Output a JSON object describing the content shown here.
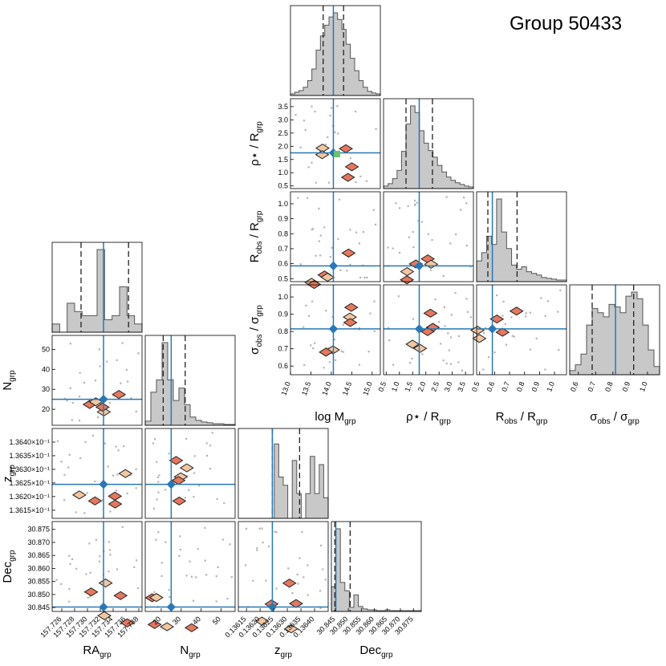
{
  "chart_data": {
    "type": "corner",
    "title": "Group 50433",
    "colors": {
      "truth": "#2878b5",
      "hist_fill": "#c8c8c8",
      "hist_edge": "#555555",
      "scatter": "#b4b4b4",
      "contour_line": "#222222",
      "contour_fill_1": "#f2c6a0",
      "contour_fill_2": "#e4785e",
      "marker_green": "#6cc26c"
    },
    "group_right": {
      "params": [
        {
          "key": "logM",
          "label_main": "log M",
          "label_sub": "grp",
          "range": [
            13.0,
            15.2
          ],
          "ticks": [
            "13.0",
            "13.5",
            "14.0",
            "14.5",
            "15.0"
          ],
          "tick_values": [
            13.0,
            13.5,
            14.0,
            14.5,
            15.0
          ],
          "truth": 14.05,
          "quantiles": [
            13.8,
            14.3
          ],
          "hist": [
            0.02,
            0.04,
            0.06,
            0.1,
            0.18,
            0.32,
            0.55,
            0.72,
            0.85,
            0.95,
            1.0,
            0.92,
            0.8,
            0.62,
            0.45,
            0.3,
            0.18,
            0.1,
            0.05,
            0.03,
            0.02
          ]
        },
        {
          "key": "rho",
          "label_main": "ρ⋆ / R",
          "label_sub": "grp",
          "range": [
            0.4,
            3.8
          ],
          "ticks": [
            "0.5",
            "1.0",
            "1.5",
            "2.0",
            "2.5",
            "3.0",
            "3.5"
          ],
          "tick_values": [
            0.5,
            1.0,
            1.5,
            2.0,
            2.5,
            3.0,
            3.5
          ],
          "truth": 1.75,
          "quantiles": [
            1.25,
            2.25
          ],
          "hist": [
            0.03,
            0.06,
            0.12,
            0.22,
            0.45,
            0.78,
            1.0,
            0.92,
            0.7,
            0.55,
            0.46,
            0.38,
            0.28,
            0.2,
            0.14,
            0.1,
            0.07,
            0.05,
            0.03,
            0.02
          ]
        },
        {
          "key": "robs",
          "label_main": "R",
          "label_sub": "obs",
          "label_tail": " / R",
          "label_sub2": "grp",
          "range": [
            0.48,
            1.08
          ],
          "ticks": [
            "0.5",
            "0.6",
            "0.7",
            "0.8",
            "0.9",
            "1.0"
          ],
          "tick_values": [
            0.5,
            0.6,
            0.7,
            0.8,
            0.9,
            1.0
          ],
          "truth": 0.585,
          "quantiles": [
            0.555,
            0.75
          ],
          "hist": [
            0.25,
            0.35,
            0.55,
            0.45,
            1.0,
            0.6,
            0.4,
            0.2,
            0.15,
            0.18,
            0.12,
            0.1,
            0.08,
            0.05,
            0.04,
            0.03,
            0.02,
            0.02
          ]
        },
        {
          "key": "sigma",
          "label_main": "σ",
          "label_sub": "obs",
          "label_tail": " / σ",
          "label_sub2": "grp",
          "range": [
            0.55,
            1.07
          ],
          "ticks": [
            "0.6",
            "0.7",
            "0.8",
            "0.9",
            "1.0"
          ],
          "tick_values": [
            0.6,
            0.7,
            0.8,
            0.9,
            1.0
          ],
          "truth": 0.815,
          "quantiles": [
            0.68,
            0.92
          ],
          "hist": [
            0.05,
            0.12,
            0.25,
            0.6,
            0.8,
            0.75,
            0.7,
            0.85,
            0.82,
            0.75,
            0.95,
            1.0,
            0.92,
            0.6,
            0.3,
            0.1
          ]
        }
      ]
    },
    "group_left": {
      "params": [
        {
          "key": "ra",
          "label_main": "RA",
          "label_sub": "grp",
          "range": [
            157.7245,
            157.7385
          ],
          "ticks": [
            "157.726",
            "157.728",
            "157.730",
            "157.732",
            "157.734",
            "157.736",
            "157.738"
          ],
          "tick_values": [
            157.726,
            157.728,
            157.73,
            157.732,
            157.734,
            157.736,
            157.738
          ],
          "truth": 157.7325,
          "quantiles": [
            157.729,
            157.7364
          ],
          "hist": [
            0.1,
            0.0,
            0.35,
            0.25,
            0.2,
            0.2,
            1.0,
            0.15,
            0.2,
            0.55,
            0.2,
            0.1
          ]
        },
        {
          "key": "ngrp",
          "label_main": "N",
          "label_sub": "grp",
          "range": [
            12,
            57
          ],
          "ticks": [
            "20",
            "30",
            "40",
            "50"
          ],
          "tick_values": [
            20,
            30,
            40,
            50
          ],
          "truth": 25,
          "quantiles": [
            21,
            32
          ],
          "hist": [
            0.05,
            0.4,
            0.55,
            1.0,
            0.55,
            0.3,
            0.45,
            0.25,
            0.1,
            0.06,
            0.04,
            0.03,
            0.02,
            0.02,
            0.01,
            0.01
          ]
        },
        {
          "key": "zgrp",
          "label_main": "z",
          "label_sub": "grp",
          "range": [
            0.13612,
            0.13645
          ],
          "ticks": [
            "0.13615",
            "0.13620",
            "0.13625",
            "0.13630",
            "0.13635",
            "0.13640"
          ],
          "tick_values": [
            0.13615,
            0.1362,
            0.13625,
            0.1363,
            0.13635,
            0.1364
          ],
          "truth": 0.136245,
          "left_ticks": [
            "1.3615×10⁻¹",
            "1.3620×10⁻¹",
            "1.3625×10⁻¹",
            "1.3630×10⁻¹",
            "1.3635×10⁻¹",
            "1.3640×10⁻¹"
          ],
          "quantiles": [
            0.136245,
            0.136345
          ],
          "hist": [
            0.0,
            0.0,
            0.0,
            0.0,
            0.0,
            0.0,
            0.0,
            0.0,
            0.9,
            0.5,
            0.4,
            0.0,
            0.7,
            0.3,
            0.0,
            0.3,
            0.75,
            0.3,
            0.65,
            0.25
          ]
        },
        {
          "key": "dec",
          "label_main": "Dec",
          "label_sub": "grp",
          "range": [
            30.8435,
            30.878
          ],
          "ticks": [
            "30.845",
            "30.850",
            "30.855",
            "30.860",
            "30.865",
            "30.870",
            "30.875"
          ],
          "tick_values": [
            30.845,
            30.85,
            30.855,
            30.86,
            30.865,
            30.87,
            30.875
          ],
          "truth": 30.8452,
          "left_ticks": [
            "30.845",
            "30.850",
            "30.855",
            "30.860",
            "30.865",
            "30.870",
            "30.875"
          ],
          "quantiles": [
            30.8448,
            30.8507
          ],
          "hist": [
            0.3,
            1.0,
            0.35,
            0.25,
            0.05,
            0.2,
            0.06,
            0.03,
            0.02,
            0.02,
            0.01,
            0.01,
            0.02,
            0.01,
            0.01,
            0.01,
            0.01,
            0.01,
            0.01,
            0.01
          ]
        }
      ]
    }
  }
}
